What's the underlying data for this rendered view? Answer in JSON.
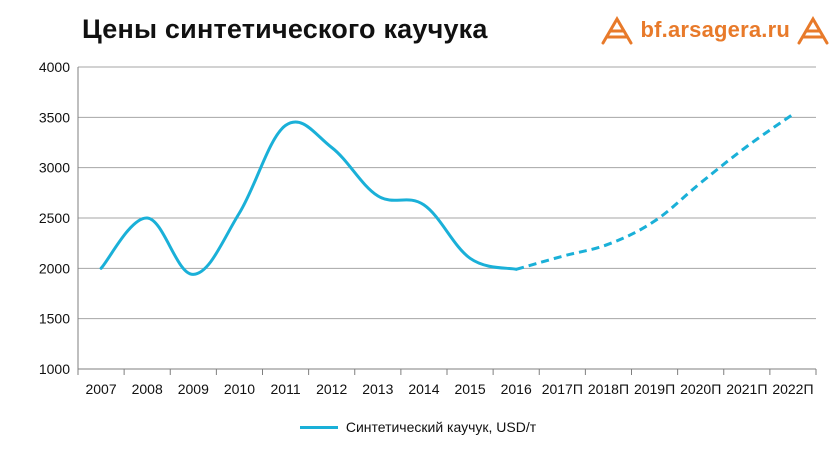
{
  "chart_data": {
    "type": "line",
    "title": "Цены синтетического каучука",
    "categories": [
      "2007",
      "2008",
      "2009",
      "2010",
      "2011",
      "2012",
      "2013",
      "2014",
      "2015",
      "2016",
      "2017П",
      "2018П",
      "2019П",
      "2020П",
      "2021П",
      "2022П"
    ],
    "series": [
      {
        "name": "Синтетический каучук, USD/т",
        "color": "#1ab0d8",
        "values": [
          2000,
          2500,
          1940,
          2550,
          3420,
          3200,
          2720,
          2630,
          2100,
          1990,
          2120,
          2240,
          2470,
          2850,
          3210,
          3530
        ],
        "solid_until_index": 9
      }
    ],
    "yticks": [
      1000,
      1500,
      2000,
      2500,
      3000,
      3500,
      4000
    ],
    "ylim": [
      1000,
      4000
    ],
    "grid": true,
    "legend": "bottom"
  },
  "logo": {
    "text": "bf.arsagera.ru",
    "color": "#e87a2a"
  }
}
